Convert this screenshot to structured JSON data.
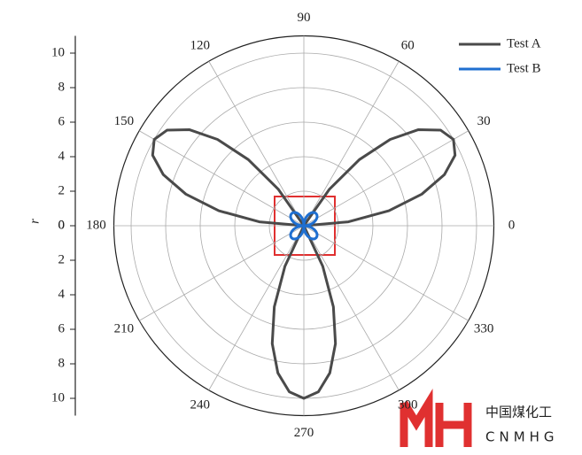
{
  "chart_data": {
    "type": "polar-line",
    "r_label": "r",
    "rlim": [
      0,
      11
    ],
    "rticks": [
      0,
      2,
      4,
      6,
      8,
      10
    ],
    "thetaticks": [
      0,
      30,
      60,
      90,
      120,
      150,
      180,
      210,
      240,
      270,
      300,
      330
    ],
    "grid": true,
    "legend": "top-right",
    "theta": [
      0,
      5,
      10,
      15,
      20,
      25,
      30,
      35,
      40,
      45,
      50,
      55,
      60,
      65,
      70,
      75,
      80,
      85,
      90,
      95,
      100,
      105,
      110,
      115,
      120,
      125,
      130,
      135,
      140,
      145,
      150,
      155,
      160,
      165,
      170,
      175,
      180,
      185,
      190,
      195,
      200,
      205,
      210,
      215,
      220,
      225,
      230,
      235,
      240,
      245,
      250,
      255,
      260,
      265,
      270,
      275,
      280,
      285,
      290,
      295,
      300,
      305,
      310,
      315,
      320,
      325,
      330,
      335,
      340,
      345,
      350,
      355,
      360
    ],
    "series": [
      {
        "name": "Test A",
        "color": "#4a4a4a",
        "values": [
          0,
          2.588,
          5,
          7.071,
          8.66,
          9.659,
          10,
          9.659,
          8.66,
          7.071,
          5,
          2.588,
          0,
          -2.588,
          -5,
          -7.071,
          -8.66,
          -9.659,
          -10,
          -9.659,
          -8.66,
          -7.071,
          -5,
          -2.588,
          0,
          2.588,
          5,
          7.071,
          8.66,
          9.659,
          10,
          9.659,
          8.66,
          7.071,
          5,
          2.588,
          0,
          -2.588,
          -5,
          -7.071,
          -8.66,
          -9.659,
          -10,
          -9.659,
          -8.66,
          -7.071,
          -5,
          -2.588,
          0,
          2.588,
          5,
          7.071,
          8.66,
          9.659,
          10,
          9.659,
          8.66,
          7.071,
          5,
          2.588,
          0,
          -2.588,
          -5,
          -7.071,
          -8.66,
          -9.659,
          -10,
          -9.659,
          -8.66,
          -7.071,
          -5,
          -2.588,
          0
        ]
      },
      {
        "name": "Test B",
        "color": "#1f6fd0",
        "values": [
          0,
          0.174,
          0.342,
          0.5,
          0.643,
          0.766,
          0.866,
          0.94,
          0.985,
          1,
          0.985,
          0.94,
          0.866,
          0.766,
          0.643,
          0.5,
          0.342,
          0.174,
          0,
          -0.174,
          -0.342,
          -0.5,
          -0.643,
          -0.766,
          -0.866,
          -0.94,
          -0.985,
          -1,
          -0.985,
          -0.94,
          -0.866,
          -0.766,
          -0.643,
          -0.5,
          -0.342,
          -0.174,
          0,
          0.174,
          0.342,
          0.5,
          0.643,
          0.766,
          0.866,
          0.94,
          0.985,
          1,
          0.985,
          0.94,
          0.866,
          0.766,
          0.643,
          0.5,
          0.342,
          0.174,
          0,
          -0.174,
          -0.342,
          -0.5,
          -0.643,
          -0.766,
          -0.866,
          -0.94,
          -0.985,
          -1,
          -0.985,
          -0.94,
          -0.866,
          -0.766,
          -0.643,
          -0.5,
          -0.342,
          -0.174,
          0
        ]
      }
    ]
  },
  "watermark": {
    "name_cn": "中国煤化工",
    "name_en": "CNMHG"
  }
}
